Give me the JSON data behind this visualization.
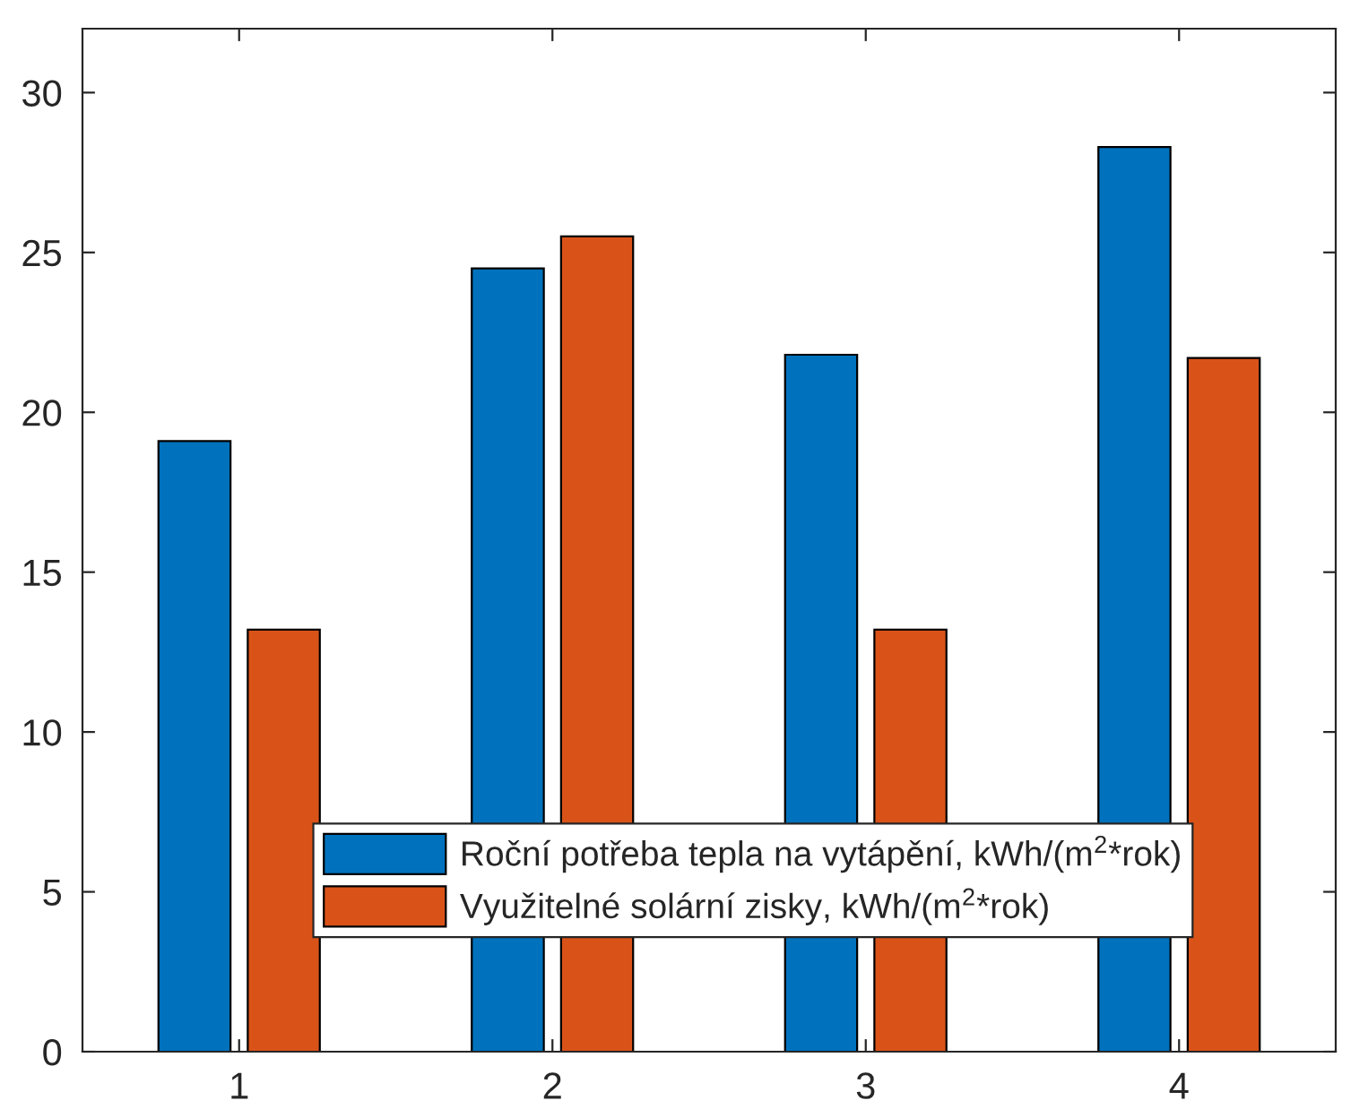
{
  "chart_data": {
    "type": "bar",
    "categories": [
      "1",
      "2",
      "3",
      "4"
    ],
    "series": [
      {
        "name": "Roční potřeba tepla na vytápění, kWh/(m$^{2}$*rok)",
        "color": "#0072bd",
        "values": [
          19.1,
          24.5,
          21.8,
          28.3
        ]
      },
      {
        "name": "Využitelné solární zisky, kWh/(m$^{2}$*rok)",
        "color": "#d95319",
        "values": [
          13.2,
          25.5,
          13.2,
          21.7
        ]
      }
    ],
    "ylim": [
      0,
      32
    ],
    "yticks": [
      0,
      5,
      10,
      15,
      20,
      25,
      30
    ],
    "grid": false,
    "legend": "bottom"
  }
}
